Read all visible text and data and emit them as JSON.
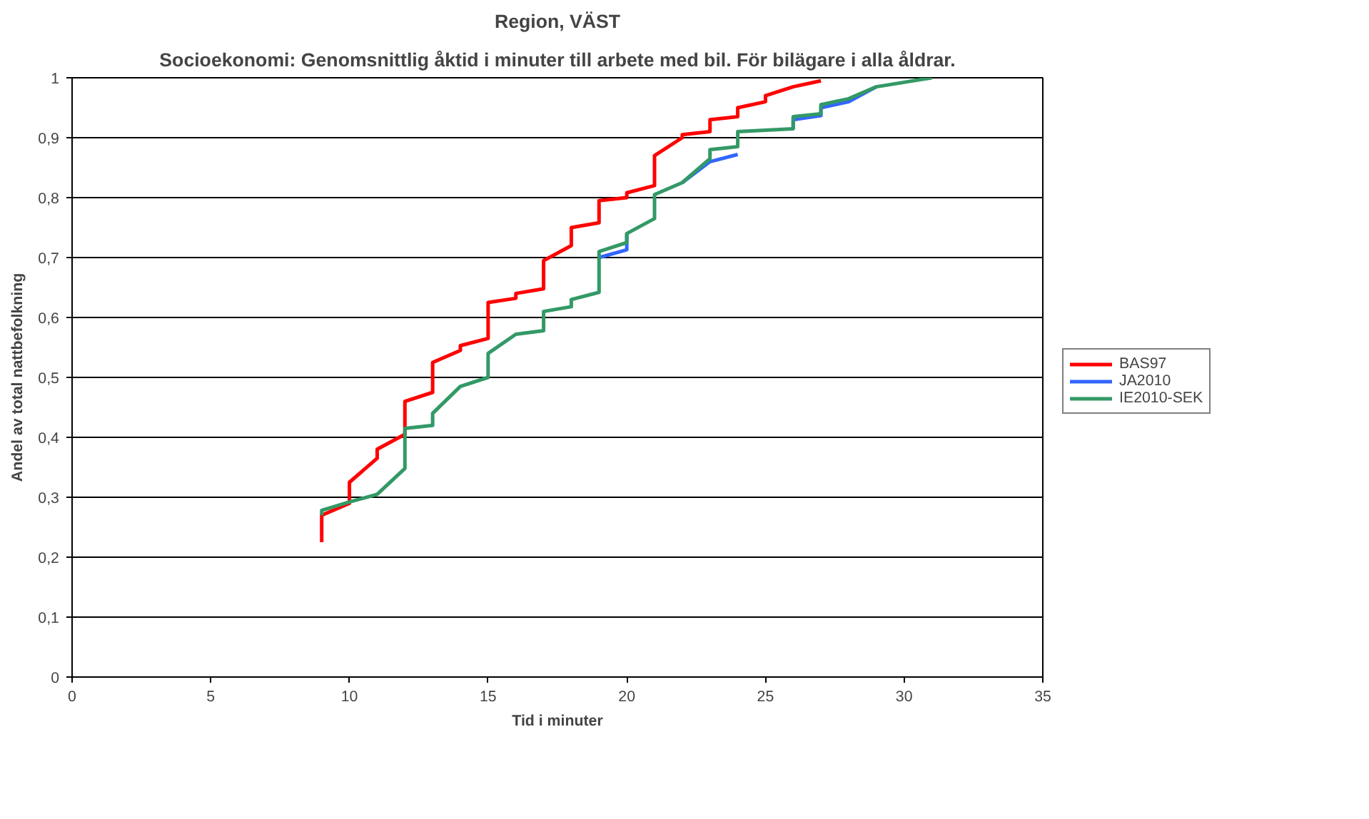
{
  "chart_data": {
    "type": "line",
    "title": "Region, VÄST",
    "subtitle": "Socioekonomi: Genomsnittlig åktid i minuter till arbete med bil. För bilägare i alla åldrar.",
    "xlabel": "Tid i minuter",
    "ylabel": "Andel av total nattbefolkning",
    "xlim": [
      0,
      35
    ],
    "xticks": [
      0,
      5,
      10,
      15,
      20,
      25,
      30,
      35
    ],
    "ylim": [
      0,
      1
    ],
    "yticks": [
      0,
      {
        "value": 0.1,
        "label": "0,1"
      },
      {
        "value": 0.2,
        "label": "0,2"
      },
      {
        "value": 0.3,
        "label": "0,3"
      },
      {
        "value": 0.4,
        "label": "0,4"
      },
      {
        "value": 0.5,
        "label": "0,5"
      },
      {
        "value": 0.6,
        "label": "0,6"
      },
      {
        "value": 0.7,
        "label": "0,7"
      },
      {
        "value": 0.8,
        "label": "0,8"
      },
      {
        "value": 0.9,
        "label": "0,9"
      },
      1
    ],
    "grid": "y",
    "legend": "right",
    "marker": "none",
    "line_style": "solid",
    "series": [
      {
        "name": "BAS97",
        "color": "#ff0000",
        "x": [
          9,
          9,
          10,
          10,
          11,
          11,
          12,
          12,
          13,
          13,
          14,
          14,
          15,
          15,
          16,
          16,
          17,
          17,
          18,
          18,
          19,
          19,
          20,
          20,
          21,
          21,
          22,
          22,
          23,
          23,
          24,
          24,
          25,
          25,
          26,
          27
        ],
        "values": [
          0.225,
          0.27,
          0.29,
          0.325,
          0.365,
          0.38,
          0.405,
          0.46,
          0.475,
          0.525,
          0.545,
          0.553,
          0.565,
          0.625,
          0.632,
          0.64,
          0.648,
          0.695,
          0.72,
          0.75,
          0.758,
          0.795,
          0.8,
          0.808,
          0.82,
          0.87,
          0.9,
          0.905,
          0.91,
          0.93,
          0.935,
          0.95,
          0.96,
          0.97,
          0.985,
          0.995
        ]
      },
      {
        "name": "JA2010",
        "color": "#3366ff",
        "x": [
          19,
          20,
          20,
          null,
          22,
          23,
          24,
          null,
          26,
          26,
          27,
          27,
          28,
          29
        ],
        "values": [
          0.7,
          0.713,
          0.74,
          null,
          0.825,
          0.86,
          0.872,
          null,
          0.915,
          0.93,
          0.937,
          0.95,
          0.96,
          0.985
        ]
      },
      {
        "name": "IE2010-SEK",
        "color": "#339966",
        "x": [
          9,
          9,
          10,
          11,
          12,
          12,
          13,
          13,
          14,
          15,
          15,
          16,
          17,
          17,
          18,
          18,
          19,
          19,
          20,
          20,
          21,
          21,
          22,
          23,
          23,
          24,
          24,
          26,
          26,
          27,
          27,
          28,
          29,
          31
        ],
        "values": [
          0.27,
          0.278,
          0.292,
          0.305,
          0.348,
          0.415,
          0.42,
          0.44,
          0.485,
          0.5,
          0.54,
          0.572,
          0.578,
          0.61,
          0.618,
          0.63,
          0.642,
          0.71,
          0.725,
          0.74,
          0.765,
          0.805,
          0.825,
          0.865,
          0.88,
          0.885,
          0.91,
          0.915,
          0.935,
          0.94,
          0.955,
          0.965,
          0.985,
          1.0
        ]
      }
    ]
  }
}
